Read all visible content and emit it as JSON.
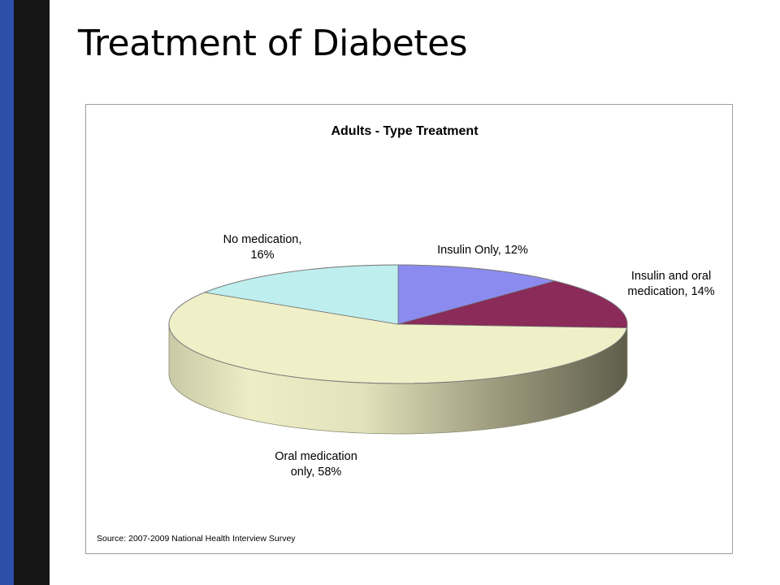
{
  "slide": {
    "title": "Treatment of Diabetes"
  },
  "colors": {
    "insulin_only": "#8b8bef",
    "insulin_and_oral": "#8a2b5a",
    "oral_only": "#efefc8",
    "no_medication": "#bfeeee",
    "accent_blue": "#2c4fa9",
    "accent_black": "#151515"
  },
  "chart_data": {
    "type": "pie",
    "title": "Adults - Type Treatment",
    "three_d": true,
    "categories": [
      "Insulin Only",
      "Insulin and oral medication",
      "Oral medication only",
      "No medication"
    ],
    "values": [
      12,
      14,
      58,
      16
    ],
    "unit": "%",
    "labels": [
      [
        "Insulin Only, 12%"
      ],
      [
        "Insulin and oral",
        "medication, 14%"
      ],
      [
        "Oral medication",
        "only, 58%"
      ],
      [
        "No medication,",
        "16%"
      ]
    ],
    "source": "Source: 2007-2009 National Health Interview Survey"
  }
}
